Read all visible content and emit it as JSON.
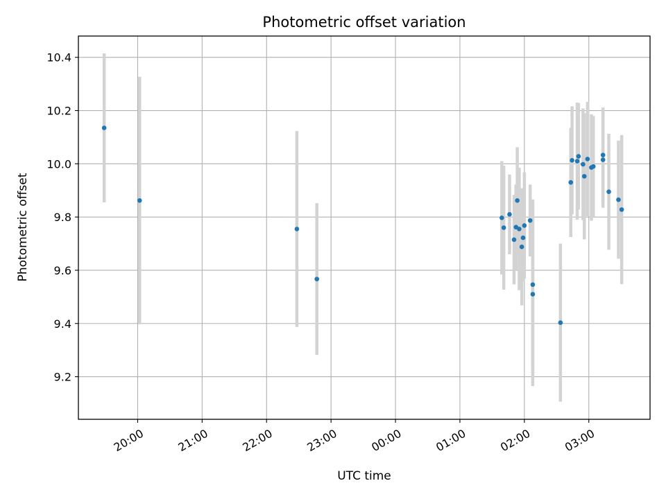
{
  "chart_data": {
    "type": "scatter",
    "title": "Photometric offset variation",
    "xlabel": "UTC time",
    "ylabel": "Photometric offset",
    "ylim": [
      9.04,
      10.48
    ],
    "xlim_hours": [
      19.08,
      27.95
    ],
    "grid": true,
    "series_color": "#1f77b4",
    "errorbar_color": "#d3d3d3",
    "x_ticks": [
      {
        "hour": 20,
        "label": "20:00"
      },
      {
        "hour": 21,
        "label": "21:00"
      },
      {
        "hour": 22,
        "label": "22:00"
      },
      {
        "hour": 23,
        "label": "23:00"
      },
      {
        "hour": 24,
        "label": "00:00"
      },
      {
        "hour": 25,
        "label": "01:00"
      },
      {
        "hour": 26,
        "label": "02:00"
      },
      {
        "hour": 27,
        "label": "03:00"
      }
    ],
    "y_ticks": [
      {
        "value": 9.2,
        "label": "9.2"
      },
      {
        "value": 9.4,
        "label": "9.4"
      },
      {
        "value": 9.6,
        "label": "9.6"
      },
      {
        "value": 9.8,
        "label": "9.8"
      },
      {
        "value": 10.0,
        "label": "10.0"
      },
      {
        "value": 10.2,
        "label": "10.2"
      },
      {
        "value": 10.4,
        "label": "10.4"
      }
    ],
    "points": [
      {
        "t": 19.48,
        "y": 10.135,
        "err": 0.28
      },
      {
        "t": 20.03,
        "y": 9.862,
        "err": 0.465
      },
      {
        "t": 22.47,
        "y": 9.755,
        "err": 0.368
      },
      {
        "t": 22.78,
        "y": 9.567,
        "err": 0.285
      },
      {
        "t": 25.65,
        "y": 9.797,
        "err": 0.213
      },
      {
        "t": 25.68,
        "y": 9.76,
        "err": 0.233
      },
      {
        "t": 25.77,
        "y": 9.81,
        "err": 0.15
      },
      {
        "t": 25.84,
        "y": 9.715,
        "err": 0.168
      },
      {
        "t": 25.87,
        "y": 9.762,
        "err": 0.16
      },
      {
        "t": 25.89,
        "y": 9.862,
        "err": 0.2
      },
      {
        "t": 25.92,
        "y": 9.755,
        "err": 0.23
      },
      {
        "t": 25.96,
        "y": 9.688,
        "err": 0.22
      },
      {
        "t": 25.98,
        "y": 9.722,
        "err": 0.163
      },
      {
        "t": 26.0,
        "y": 9.768,
        "err": 0.2
      },
      {
        "t": 26.09,
        "y": 9.787,
        "err": 0.135
      },
      {
        "t": 26.13,
        "y": 9.546,
        "err": 0.32
      },
      {
        "t": 26.13,
        "y": 9.51,
        "err": 0.345
      },
      {
        "t": 26.56,
        "y": 9.403,
        "err": 0.297
      },
      {
        "t": 26.72,
        "y": 9.93,
        "err": 0.205
      },
      {
        "t": 26.74,
        "y": 10.013,
        "err": 0.203
      },
      {
        "t": 26.82,
        "y": 10.01,
        "err": 0.22
      },
      {
        "t": 26.84,
        "y": 10.028,
        "err": 0.2
      },
      {
        "t": 26.91,
        "y": 9.998,
        "err": 0.21
      },
      {
        "t": 26.93,
        "y": 9.953,
        "err": 0.237
      },
      {
        "t": 26.98,
        "y": 10.018,
        "err": 0.215
      },
      {
        "t": 27.04,
        "y": 9.986,
        "err": 0.2
      },
      {
        "t": 27.07,
        "y": 9.99,
        "err": 0.19
      },
      {
        "t": 27.22,
        "y": 10.015,
        "err": 0.18
      },
      {
        "t": 27.22,
        "y": 10.033,
        "err": 0.178
      },
      {
        "t": 27.31,
        "y": 9.895,
        "err": 0.218
      },
      {
        "t": 27.46,
        "y": 9.865,
        "err": 0.222
      },
      {
        "t": 27.51,
        "y": 9.828,
        "err": 0.28
      }
    ]
  }
}
